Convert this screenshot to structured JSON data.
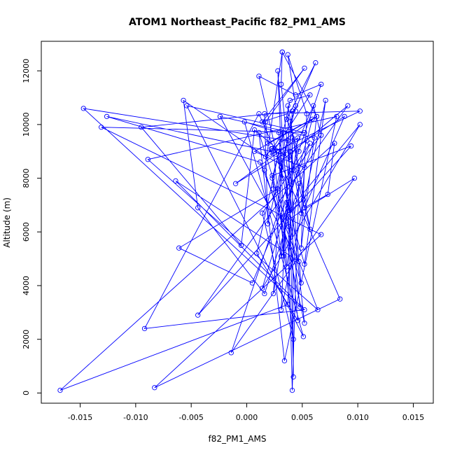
{
  "chart_data": {
    "type": "scatter",
    "title": "ATOM1 Northeast_Pacific f82_PM1_AMS",
    "xlabel": "f82_PM1_AMS",
    "ylabel": "Altitude (m)",
    "xlim": [
      -0.0185,
      0.0168
    ],
    "ylim": [
      -380,
      13100
    ],
    "x_ticks": [
      -0.015,
      -0.01,
      -0.005,
      0.0,
      0.005,
      0.01,
      0.015
    ],
    "x_tick_labels": [
      "-0.015",
      "-0.010",
      "-0.005",
      "0.000",
      "0.005",
      "0.010",
      "0.015"
    ],
    "y_ticks": [
      0,
      2000,
      4000,
      6000,
      8000,
      10000,
      12000
    ],
    "y_tick_labels": [
      "0",
      "2000",
      "4000",
      "6000",
      "8000",
      "10000",
      "12000"
    ],
    "grid": false,
    "connected": true,
    "marker": "open-circle",
    "color": "#0000ff",
    "series": [
      {
        "x": [
          0.0031,
          0.0024,
          0.0037,
          0.0041,
          0.0047,
          0.0036,
          0.0029,
          -0.0002,
          0.0051,
          -0.0054,
          0.0052,
          -0.0131,
          0.0067,
          -0.0083,
          0.0084,
          0.0011,
          -0.0092,
          0.0052,
          -0.0064,
          0.0047,
          -0.0024,
          0.0061,
          0.0016,
          -0.0044,
          -0.0057,
          0.0017,
          0.0022,
          0.0047,
          0.0036,
          0.0062,
          0.0039,
          0.0051,
          0.0034,
          0.0011,
          0.0034,
          0.0081,
          -0.0089,
          0.0064,
          0.0012,
          -0.0126,
          0.0033,
          0.0048,
          -0.0147,
          0.0037,
          0.0028,
          -0.0061,
          0.0005,
          0.0057,
          0.0014,
          0.0042,
          0.0024,
          0.0057,
          0.0039,
          0.0009,
          0.0046,
          0.0038,
          0.0028,
          0.0032,
          0.0011,
          0.0044,
          0.0067,
          -0.0014,
          0.0097,
          0.0035,
          0.0031,
          0.0071,
          0.0052,
          0.0036,
          0.0041,
          0.0033,
          0.0029,
          0.0023,
          0.0052,
          0.0033,
          0.0023,
          0.0063,
          0.0049,
          0.0054,
          0.0037,
          0.0044,
          0.0019,
          0.0016,
          0.0102,
          0.0021,
          0.0052,
          0.0049,
          0.0039,
          0.0057,
          0.0037,
          0.0042,
          0.0041,
          0.0037,
          -0.0168,
          0.0079,
          0.0073,
          0.0052,
          0.0088,
          -0.001,
          0.0046,
          0.0031,
          0.0024,
          0.0023,
          0.0094,
          -0.0044,
          0.0091,
          0.003,
          0.0038,
          0.0102,
          0.0014,
          0.0054,
          0.0059,
          0.0007,
          0.0043,
          0.0067,
          0.006,
          0.0039,
          0.0007,
          -0.0005,
          -0.0095,
          0.0044,
          0.0014,
          0.0052,
          0.0017,
          0.0019,
          0.0063,
          0.0032,
          0.0031,
          0.0049,
          0.0016,
          0.0032
        ],
        "y": [
          8400,
          3700,
          6900,
          100,
          7800,
          4700,
          9700,
          10100,
          2100,
          10700,
          9700,
          9900,
          5900,
          200,
          3500,
          10400,
          2400,
          3100,
          7900,
          4900,
          10300,
          9500,
          3700,
          6900,
          10900,
          8800,
          9100,
          9000,
          10200,
          12300,
          10100,
          7200,
          6600,
          9700,
          1200,
          10300,
          8700,
          3100,
          8600,
          10300,
          8900,
          3200,
          10600,
          9400,
          7600,
          5400,
          4100,
          9300,
          6700,
          2000,
          9000,
          11100,
          10900,
          5200,
          2700,
          6200,
          12000,
          8000,
          11800,
          11100,
          11500,
          1500,
          8000,
          6400,
          3100,
          10900,
          4800,
          7100,
          10500,
          5100,
          9000,
          8000,
          2600,
          9700,
          9100,
          10300,
          5400,
          10400,
          12600,
          10700,
          6300,
          10400,
          10500,
          8900,
          8400,
          6700,
          9000,
          6100,
          10700,
          600,
          9500,
          3300,
          100,
          9300,
          7400,
          6900,
          10300,
          7800,
          9500,
          5100,
          7600,
          8100,
          9200,
          2900,
          10700,
          8600,
          6800,
          10000,
          3900,
          9400,
          10200,
          9000,
          8300,
          9600,
          10700,
          8700,
          9800,
          5500,
          9900,
          10500,
          10100,
          12100,
          10100,
          9300,
          10300,
          12700,
          11500,
          4100,
          8300,
          12700
        ]
      }
    ]
  }
}
